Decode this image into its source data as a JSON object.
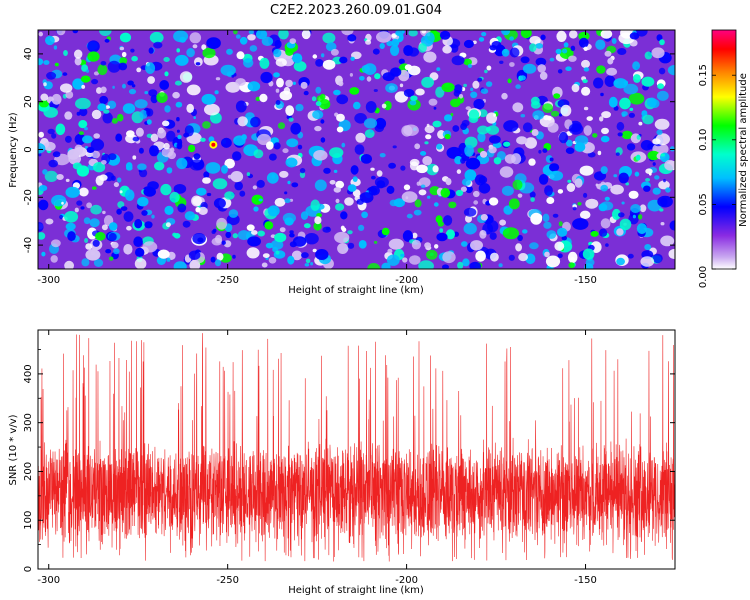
{
  "title": "C2E2.2023.260.09.01.G04",
  "chart_data": [
    {
      "type": "heatmap",
      "xlabel": "Height of straight line (km)",
      "ylabel": "Frequency (Hz)",
      "xlim": [
        -303,
        -125
      ],
      "ylim": [
        -50,
        50
      ],
      "xticks": [
        -300,
        -250,
        -200,
        -150
      ],
      "yticks": [
        -40,
        -20,
        0,
        20,
        40
      ],
      "colorbar": {
        "label": "Normalized spectral amplitude",
        "range": [
          0,
          0.185
        ],
        "ticks": [
          0.0,
          0.05,
          0.1,
          0.15
        ],
        "tick_labels": [
          "0.00",
          "0.05",
          "0.10",
          "0.15"
        ],
        "colormap": [
          "#ffffff",
          "#8a2be2",
          "#0000ff",
          "#00bfff",
          "#00ffcc",
          "#00ff00",
          "#ffff00",
          "#ff8800",
          "#ff0000",
          "#ff0080"
        ]
      },
      "peak": {
        "x": -254,
        "y": 2,
        "value": 0.17
      },
      "grid": false
    },
    {
      "type": "line",
      "xlabel": "Height of straight line (km)",
      "ylabel": "SNR (10 * v/v)",
      "xlim": [
        -303,
        -125
      ],
      "ylim": [
        0,
        490
      ],
      "xticks": [
        -300,
        -250,
        -200,
        -150
      ],
      "yticks": [
        0,
        100,
        200,
        300,
        400
      ],
      "series_color": "#ee2222",
      "typical_range": [
        80,
        240
      ],
      "max_value": 485,
      "grid": false
    }
  ]
}
